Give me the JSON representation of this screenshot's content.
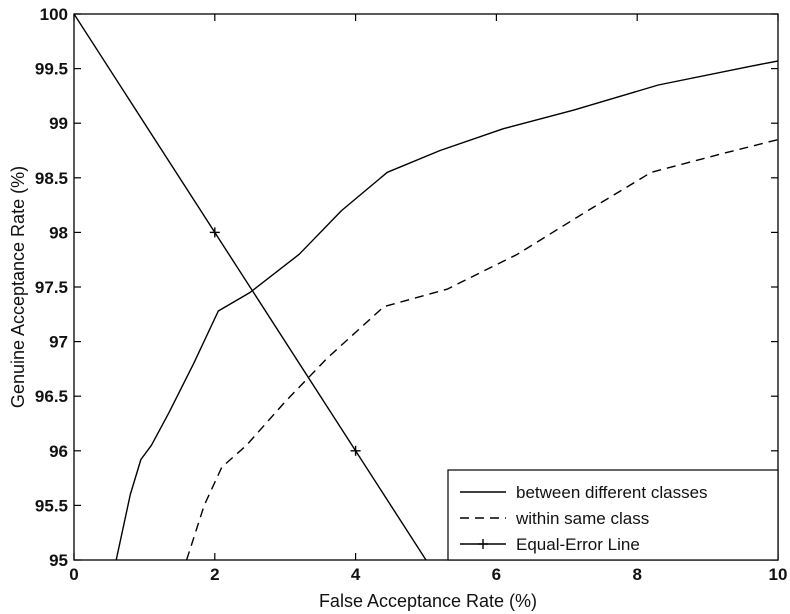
{
  "chart_data": {
    "type": "line",
    "title": "",
    "xlabel": "False Acceptance Rate (%)",
    "ylabel": "Genuine Acceptance Rate (%)",
    "xlim": [
      0,
      10
    ],
    "ylim": [
      95,
      100
    ],
    "xticks": [
      "0",
      "2",
      "4",
      "6",
      "8",
      "10"
    ],
    "yticks": [
      "95",
      "95.5",
      "96",
      "96.5",
      "97",
      "97.5",
      "98",
      "98.5",
      "99",
      "99.5",
      "100"
    ],
    "grid": false,
    "legend_position": "bottom-right",
    "series": [
      {
        "name": "between different classes",
        "style": "solid",
        "color": "#000000",
        "x": [
          0.6,
          0.8,
          0.95,
          1.1,
          1.35,
          1.7,
          2.05,
          2.5,
          3.2,
          3.8,
          4.45,
          5.2,
          6.1,
          7.1,
          8.3,
          9.6,
          10
        ],
        "y": [
          95.0,
          95.6,
          95.92,
          96.05,
          96.35,
          96.8,
          97.28,
          97.45,
          97.8,
          98.2,
          98.55,
          98.75,
          98.95,
          99.12,
          99.35,
          99.52,
          99.57
        ]
      },
      {
        "name": "within same class",
        "style": "dashed",
        "color": "#000000",
        "x": [
          1.6,
          1.85,
          2.1,
          2.45,
          3.0,
          3.6,
          4.4,
          5.3,
          6.3,
          7.3,
          8.2,
          9.2,
          10
        ],
        "y": [
          95.0,
          95.5,
          95.85,
          96.05,
          96.45,
          96.85,
          97.32,
          97.48,
          97.8,
          98.2,
          98.55,
          98.72,
          98.85
        ]
      },
      {
        "name": "Equal-Error Line",
        "style": "solid-plus",
        "color": "#000000",
        "x": [
          0,
          5
        ],
        "y": [
          100,
          95
        ],
        "markers": [
          [
            2,
            98
          ],
          [
            4,
            96
          ]
        ]
      }
    ]
  }
}
